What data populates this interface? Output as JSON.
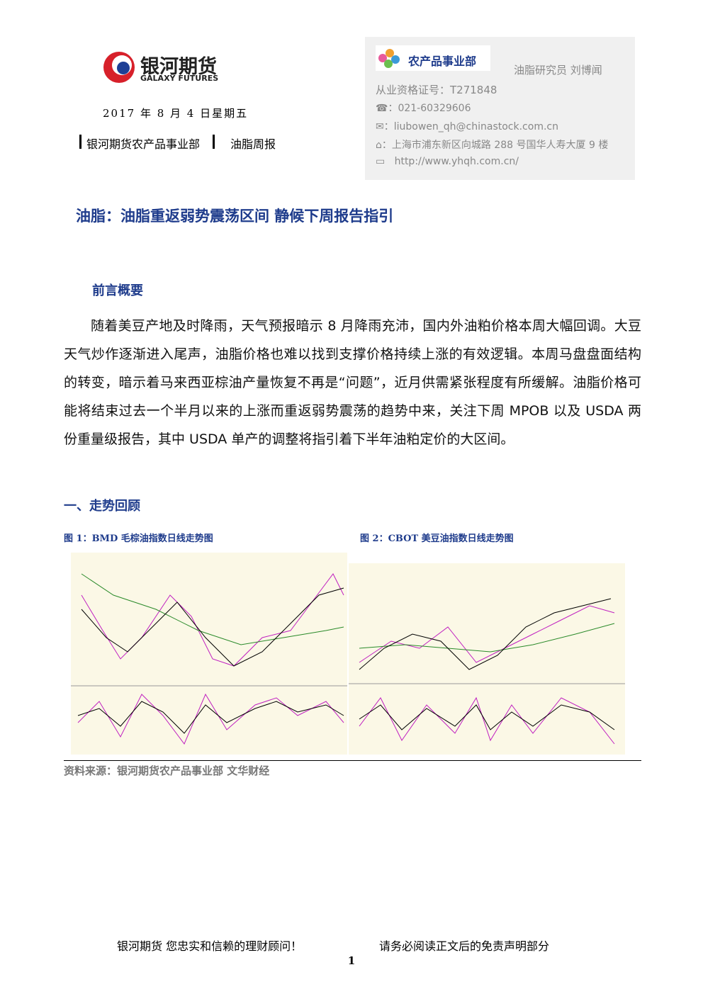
{
  "header": {
    "logo_cn": "银河期货",
    "logo_en": "GALAXY FUTURES",
    "date": "2017 年 8 月 4 日星期五",
    "dept": "银河期货农产品事业部",
    "report": "油脂周报"
  },
  "contact": {
    "dept_logo": "农产品事业部",
    "role": "油脂研究员  刘博闻",
    "license": "从业资格证号：T271848",
    "phone": "：021-60329606",
    "email": "：liubowen_qh@chinastock.com.cn",
    "address": "：上海市浦东新区向城路 288 号国华人寿大厦 9 楼",
    "web": "http://www.yhqh.com.cn/"
  },
  "title": "油脂：油脂重返弱势震荡区间  静候下周报告指引",
  "intro": {
    "heading": "前言概要",
    "paragraph": "随着美豆产地及时降雨，天气预报暗示 8 月降雨充沛，国内外油粕价格本周大幅回调。大豆天气炒作逐渐进入尾声，油脂价格也难以找到支撑价格持续上涨的有效逻辑。本周马盘盘面结构的转变，暗示着马来西亚棕油产量恢复不再是“问题”，近月供需紧张程度有所缓解。油脂价格可能将结束过去一个半月以来的上涨而重返弱势震荡的趋势中来，关注下周 MPOB 以及 USDA 两份重量级报告，其中 USDA 单产的调整将指引着下半年油粕定价的大区间。"
  },
  "section1": {
    "heading": "一、走势回顾",
    "figures": [
      {
        "caption": "图 1：BMD 毛棕油指数日线走势图"
      },
      {
        "caption": "图 2：CBOT 美豆油指数日线走势图"
      }
    ],
    "source": "资料来源：银河期货农产品事业部  文华财经"
  },
  "footer": {
    "left": "银河期货  您忠实和信赖的理财顾问！",
    "right": "请务必阅读正文后的免责声明部分",
    "page": "1"
  }
}
